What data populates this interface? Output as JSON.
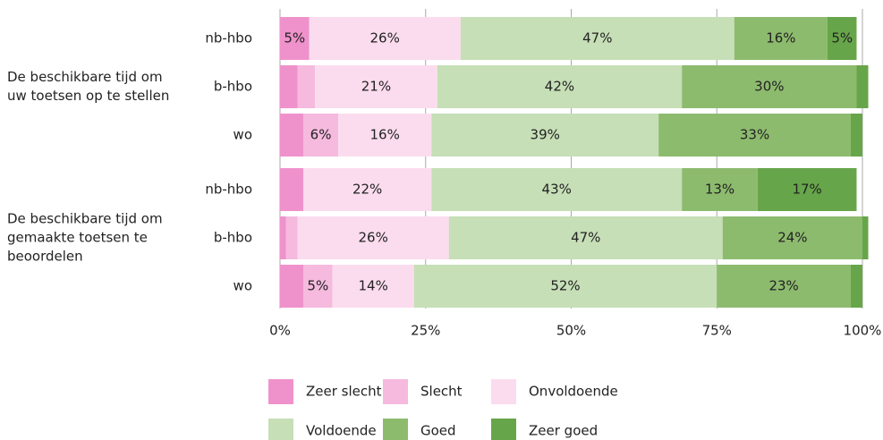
{
  "chart_data": {
    "type": "stacked-bar-horizontal",
    "groups": [
      {
        "label": [
          "De beschikbare tijd om",
          "uw toetsen op te stellen"
        ]
      },
      {
        "label": [
          "De beschikbare tijd om",
          "gemaakte toetsen te",
          "beoordelen"
        ]
      }
    ],
    "categories": [
      "nb-hbo",
      "b-hbo",
      "wo",
      "nb-hbo",
      "b-hbo",
      "wo"
    ],
    "series": [
      {
        "name": "Zeer slecht",
        "color": "#ef92cb",
        "values": [
          5,
          3,
          4,
          4,
          1,
          4
        ],
        "value_labels": [
          "5%",
          null,
          null,
          null,
          null,
          null
        ]
      },
      {
        "name": "Slecht",
        "color": "#f5bade",
        "values": [
          0,
          3,
          6,
          0,
          2,
          5
        ],
        "value_labels": [
          null,
          null,
          "6%",
          null,
          null,
          "5%"
        ]
      },
      {
        "name": "Onvoldoende",
        "color": "#fbdcee",
        "values": [
          26,
          21,
          16,
          22,
          26,
          14
        ],
        "value_labels": [
          "26%",
          "21%",
          "16%",
          "22%",
          "26%",
          "14%"
        ]
      },
      {
        "name": "Voldoende",
        "color": "#c6dfb7",
        "values": [
          47,
          42,
          39,
          43,
          47,
          52
        ],
        "value_labels": [
          "47%",
          "42%",
          "39%",
          "43%",
          "47%",
          "52%"
        ]
      },
      {
        "name": "Goed",
        "color": "#8dbb6e",
        "values": [
          16,
          30,
          33,
          13,
          24,
          23
        ],
        "value_labels": [
          "16%",
          "30%",
          "33%",
          "13%",
          "24%",
          "23%"
        ]
      },
      {
        "name": "Zeer goed",
        "color": "#67a54a",
        "values": [
          5,
          2,
          2,
          17,
          1,
          2
        ],
        "value_labels": [
          "5%",
          null,
          null,
          "17%",
          null,
          null
        ]
      }
    ],
    "xlim": [
      0,
      100
    ],
    "xticks": [
      {
        "value": 0,
        "label": "0%"
      },
      {
        "value": 25,
        "label": "25%"
      },
      {
        "value": 50,
        "label": "50%"
      },
      {
        "value": 75,
        "label": "75%"
      },
      {
        "value": 100,
        "label": "100%"
      }
    ],
    "grid": true
  }
}
